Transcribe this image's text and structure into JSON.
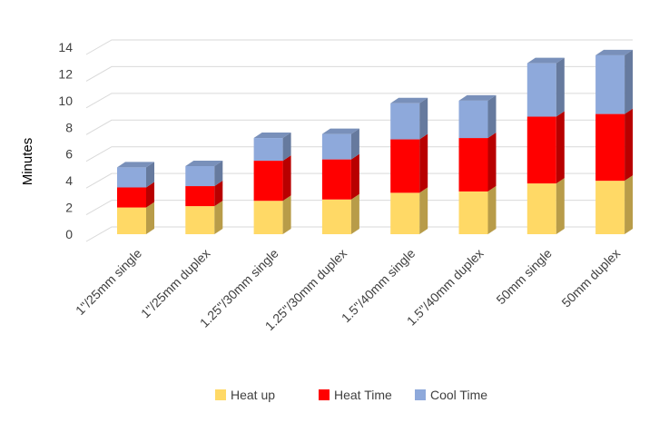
{
  "chart_data": {
    "type": "bar",
    "stacked": true,
    "three_d": true,
    "title": "",
    "xlabel": "",
    "ylabel": "Minutes",
    "ylim": [
      0,
      14
    ],
    "yticks": [
      "0",
      "2",
      "4",
      "6",
      "8",
      "10",
      "12",
      "14"
    ],
    "grid": true,
    "legend_position": "bottom",
    "categories": [
      "1\"/25mm single",
      "1\"/25mm duplex",
      "1.25\"/30mm single",
      "1.25\"/30mm duplex",
      "1.5\"/40mm single",
      "1.5\"/40mm  duplex",
      "50mm single",
      "50mm duplex"
    ],
    "series": [
      {
        "name": "Heat up",
        "color": "#FFD966",
        "values": [
          2.0,
          2.1,
          2.5,
          2.6,
          3.1,
          3.2,
          3.8,
          4.0
        ]
      },
      {
        "name": "Heat Time",
        "color": "#FF0000",
        "values": [
          1.5,
          1.5,
          3.0,
          3.0,
          4.0,
          4.0,
          5.0,
          5.0
        ]
      },
      {
        "name": "Cool Time",
        "color": "#8EA9DB",
        "values": [
          1.5,
          1.5,
          1.7,
          1.9,
          2.7,
          2.8,
          4.0,
          4.4
        ]
      }
    ]
  }
}
